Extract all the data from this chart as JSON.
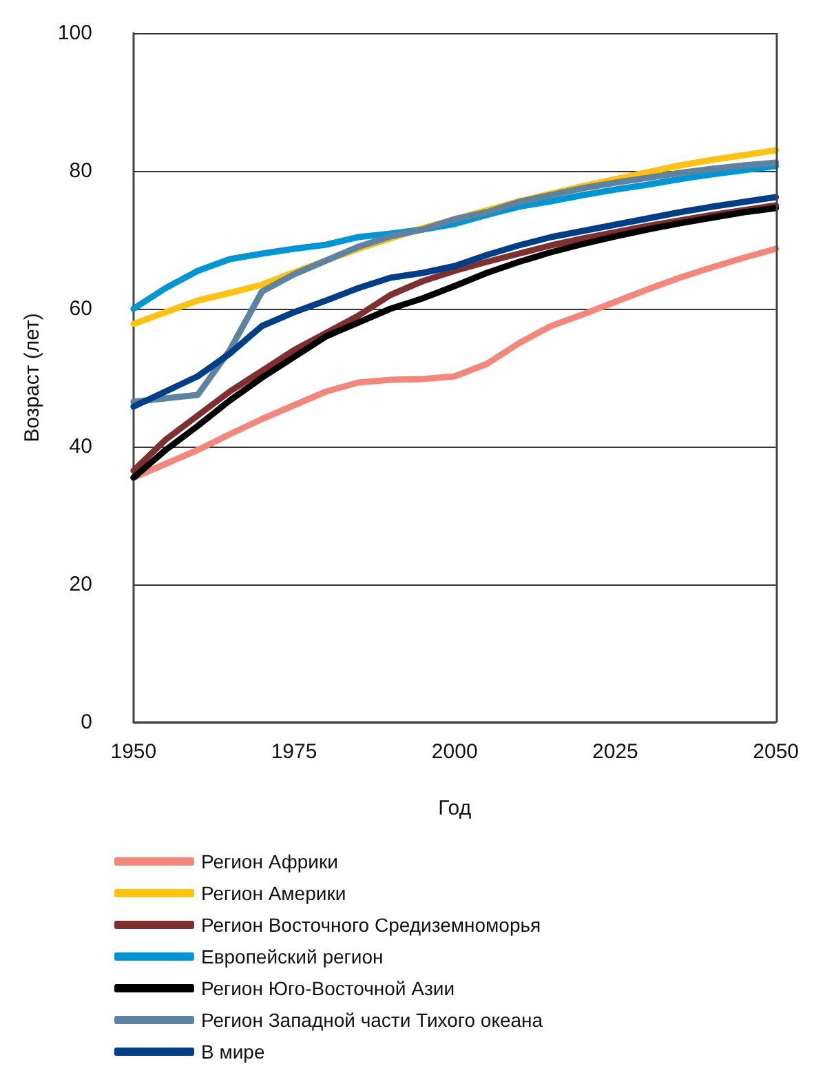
{
  "chart_data": {
    "type": "line",
    "xlabel": "Год",
    "ylabel": "Возраст (лет)",
    "x": [
      1950,
      1955,
      1960,
      1965,
      1970,
      1975,
      1980,
      1985,
      1990,
      1995,
      2000,
      2005,
      2010,
      2015,
      2020,
      2025,
      2030,
      2035,
      2040,
      2045,
      2050
    ],
    "xlim": [
      1950,
      2050
    ],
    "xticks": [
      1950,
      1975,
      2000,
      2025,
      2050
    ],
    "ylim": [
      0,
      100
    ],
    "yticks": [
      0,
      20,
      40,
      60,
      80,
      100
    ],
    "grid": "y",
    "legend": "bottom",
    "marker": "none",
    "line_style": "solid",
    "series": [
      {
        "name": "Регион Африки",
        "color": "#f4877a",
        "values": [
          35.5,
          37.5,
          39.5,
          41.8,
          44,
          46,
          48,
          49.3,
          49.7,
          49.8,
          50.2,
          52,
          55,
          57.5,
          59.2,
          61,
          62.8,
          64.5,
          66,
          67.4,
          68.7
        ]
      },
      {
        "name": "Регион Америки",
        "color": "#ffc20e",
        "values": [
          57.8,
          59.5,
          61.2,
          62.3,
          63.5,
          65.3,
          67,
          68.7,
          70.2,
          71.7,
          73,
          74.3,
          75.6,
          76.7,
          77.8,
          78.8,
          79.8,
          80.8,
          81.6,
          82.3,
          83
        ]
      },
      {
        "name": "Регион Восточного Средиземноморья",
        "color": "#7f2f2f",
        "values": [
          36.5,
          41,
          44.5,
          48,
          51,
          54,
          56.5,
          59,
          62,
          64,
          65.5,
          66.8,
          68,
          69.2,
          70.2,
          71.1,
          72,
          72.8,
          73.6,
          74.3,
          75
        ]
      },
      {
        "name": "Европейский регион",
        "color": "#0096d6",
        "values": [
          60,
          63,
          65.5,
          67.2,
          68,
          68.7,
          69.3,
          70.4,
          70.9,
          71.5,
          72.3,
          73.6,
          74.8,
          75.6,
          76.5,
          77.3,
          78,
          78.8,
          79.5,
          80.1,
          80.7
        ]
      },
      {
        "name": "Регион Юго-Восточной Азии",
        "color": "#000000",
        "values": [
          35.5,
          39.5,
          43,
          46.7,
          50,
          53,
          56,
          58,
          60,
          61.5,
          63.3,
          65.2,
          66.8,
          68.2,
          69.4,
          70.5,
          71.5,
          72.4,
          73.2,
          74,
          74.6
        ]
      },
      {
        "name": "Регион Западной части Тихого океана",
        "color": "#5e83a0",
        "values": [
          46.5,
          47,
          47.5,
          54,
          62.5,
          65,
          67,
          69,
          70.5,
          71.5,
          73,
          74,
          75.5,
          76.5,
          77.5,
          78.3,
          79,
          79.7,
          80.3,
          80.8,
          81.2
        ]
      },
      {
        "name": "В мире",
        "color": "#003f87",
        "values": [
          45.8,
          48,
          50.2,
          53.5,
          57.5,
          59.5,
          61.2,
          63,
          64.5,
          65.2,
          66.2,
          67.8,
          69.2,
          70.4,
          71.3,
          72.2,
          73.1,
          74,
          74.8,
          75.5,
          76.2
        ]
      }
    ]
  }
}
